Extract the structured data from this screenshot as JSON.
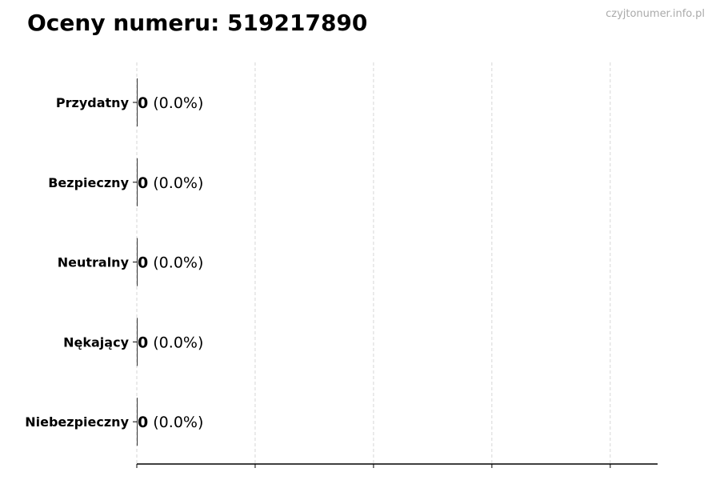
{
  "title": "Oceny numeru: 519217890",
  "watermark": "czyjtonumer.info.pl",
  "chart_data": {
    "type": "bar",
    "orientation": "horizontal",
    "title": "Oceny numeru: 519217890",
    "categories": [
      "Przydatny",
      "Bezpieczny",
      "Neutralny",
      "Nękający",
      "Niebezpieczny"
    ],
    "values": [
      0,
      0,
      0,
      0,
      0
    ],
    "data_labels": [
      "0 (0.0%)",
      "0 (0.0%)",
      "0 (0.0%)",
      "0 (0.0%)",
      "0 (0.0%)"
    ],
    "value_labels": [
      "0",
      "0",
      "0",
      "0",
      "0"
    ],
    "percent_labels": [
      "(0.0%)",
      "(0.0%)",
      "(0.0%)",
      "(0.0%)",
      "(0.0%)"
    ],
    "xlim": [
      0,
      4.4
    ],
    "xticks": [
      0,
      1,
      2,
      3,
      4
    ],
    "x_tick_labels_shown": false,
    "grid": "vertical dashed",
    "bar_color": "#333333"
  }
}
